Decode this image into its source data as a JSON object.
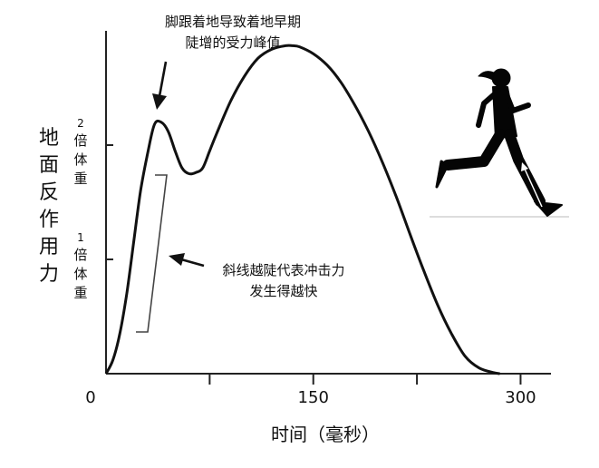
{
  "chart_data": {
    "type": "line",
    "title": "",
    "xlabel": "时间（毫秒）",
    "ylabel": "地面反作用力",
    "x_ticks": [
      {
        "value": 0,
        "label": "0"
      },
      {
        "value": 150,
        "label": "150"
      },
      {
        "value": 300,
        "label": "300"
      }
    ],
    "x_minor_ticks": [
      75,
      225
    ],
    "y_ticks": [
      {
        "value": 1,
        "num": "1",
        "unit": "倍体重"
      },
      {
        "value": 2,
        "num": "2",
        "unit": "倍体重"
      }
    ],
    "xlim": [
      0,
      322
    ],
    "ylim": [
      0,
      3.0
    ],
    "grid": false,
    "series": [
      {
        "x": [
          0,
          5,
          10,
          15,
          20,
          25,
          30,
          35,
          40,
          45,
          50,
          55,
          60,
          65,
          70,
          75,
          80,
          90,
          100,
          110,
          120,
          130,
          135,
          140,
          150,
          160,
          170,
          180,
          190,
          200,
          210,
          220,
          230,
          240,
          250,
          260,
          270,
          280,
          285
        ],
        "y": [
          0,
          0.12,
          0.35,
          0.7,
          1.15,
          1.6,
          1.92,
          2.18,
          2.2,
          2.12,
          1.95,
          1.8,
          1.75,
          1.76,
          1.8,
          1.95,
          2.1,
          2.38,
          2.6,
          2.76,
          2.84,
          2.87,
          2.87,
          2.86,
          2.8,
          2.7,
          2.55,
          2.35,
          2.12,
          1.85,
          1.55,
          1.22,
          0.9,
          0.6,
          0.35,
          0.15,
          0.05,
          0.01,
          0
        ]
      }
    ],
    "annotations": [
      {
        "lines": [
          "脚跟着地导致着地早期",
          "陡增的受力峰值"
        ],
        "target_x": 44,
        "target_y": 2.2
      },
      {
        "lines": [
          "斜线越陡代表冲击力",
          "发生得越快"
        ],
        "target_x": 50,
        "target_y": 1.0
      }
    ],
    "colors": {
      "line": "#111111",
      "axis": "#222222",
      "bracket": "#444444",
      "silhouette": "#050505"
    }
  },
  "figure": {
    "icon": "runner-silhouette-icon"
  }
}
